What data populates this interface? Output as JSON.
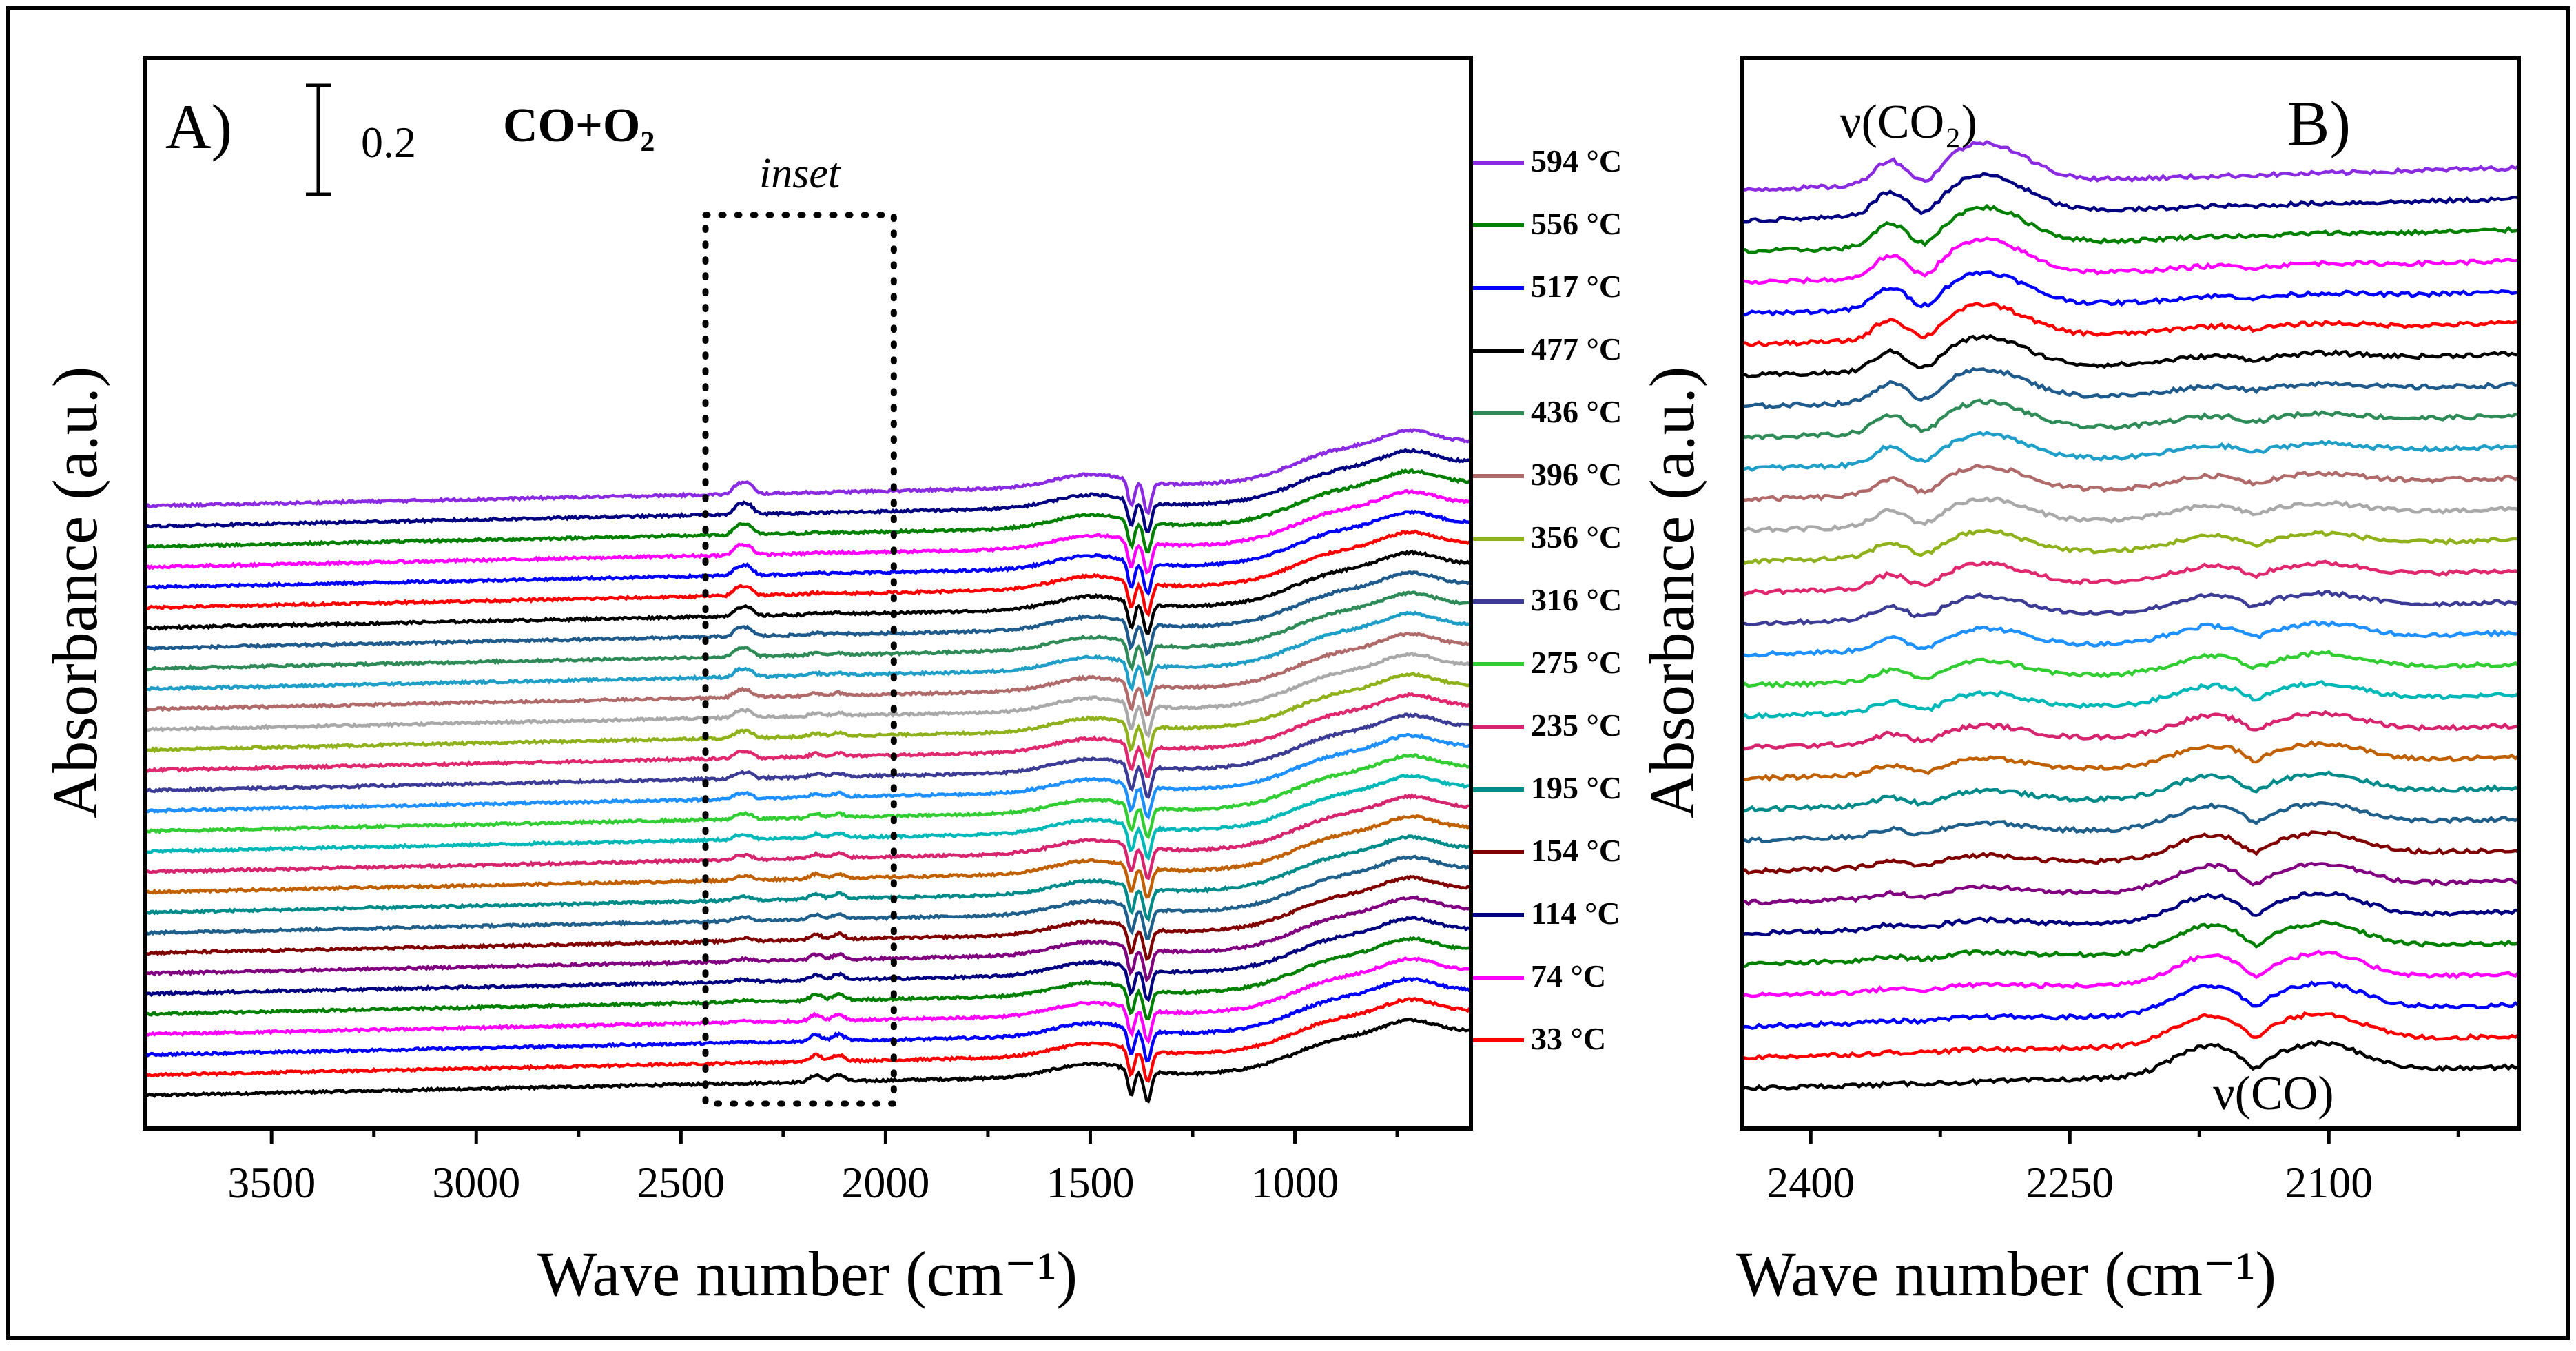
{
  "chart_data": [
    {
      "type": "line",
      "panel": "A",
      "panel_label": "A)",
      "subtitle": "CO+O₂",
      "scale_bar_label": "0.2",
      "inset_label": "inset",
      "inset_range": [
        1980,
        2440
      ],
      "xlabel": "Wave number (cm⁻¹)",
      "ylabel": "Absorbance (a.u.)",
      "xlim": [
        3810,
        570
      ],
      "x_reversed": true,
      "x_ticks": [
        "3500",
        "3000",
        "2500",
        "2000",
        "1500",
        "1000"
      ],
      "y_ticks": "none",
      "series_count": 30,
      "offset_note": "spectra vertically stacked; baselines shift by ~0.03 a.u. per curve",
      "features": {
        "sharp_dips_cm1": [
          1400,
          1360
        ],
        "ramp_start_cm1": 1000,
        "co_doublet_cm1": [
          2170,
          2115
        ],
        "co2_doublet_cm1": [
          2360,
          2335
        ]
      },
      "temperature_labels": [
        "594 °C",
        "556 °C",
        "517 °C",
        "477 °C",
        "436 °C",
        "396 °C",
        "356 °C",
        "316 °C",
        "275 °C",
        "235 °C",
        "195 °C",
        "154 °C",
        "114 °C",
        "74 °C",
        "33 °C"
      ],
      "series_colors": [
        "#000000",
        "#ff0000",
        "#0000ff",
        "#ff00ff",
        "#008000",
        "#000080",
        "#800080",
        "#800000",
        "#1f5f8b",
        "#008b8b",
        "#c06000",
        "#d6246e",
        "#00b8b8",
        "#32cd32",
        "#1e90ff",
        "#3c3c96",
        "#e0286e",
        "#8fb21c",
        "#a9a9a9",
        "#b06a6a",
        "#1f9fc8",
        "#2e8b57",
        "#1e5a8c",
        "#000000",
        "#ff0000",
        "#0000ff",
        "#ff00ff",
        "#008000",
        "#000080",
        "#8a2be2"
      ]
    },
    {
      "type": "line",
      "panel": "B",
      "panel_label": "B)",
      "xlabel": "Wave number (cm⁻¹)",
      "ylabel": "Absorbance (a.u.)",
      "xlim": [
        2440,
        1990
      ],
      "x_reversed": true,
      "x_ticks": [
        "2400",
        "2250",
        "2100"
      ],
      "y_ticks": "none",
      "series_count": 30,
      "annotations": [
        "ν(CO₂)",
        "ν(CO)"
      ],
      "features": {
        "co_band_cm1": [
          2170,
          2115
        ],
        "co2_band_cm1": [
          2360,
          2335
        ]
      }
    }
  ]
}
